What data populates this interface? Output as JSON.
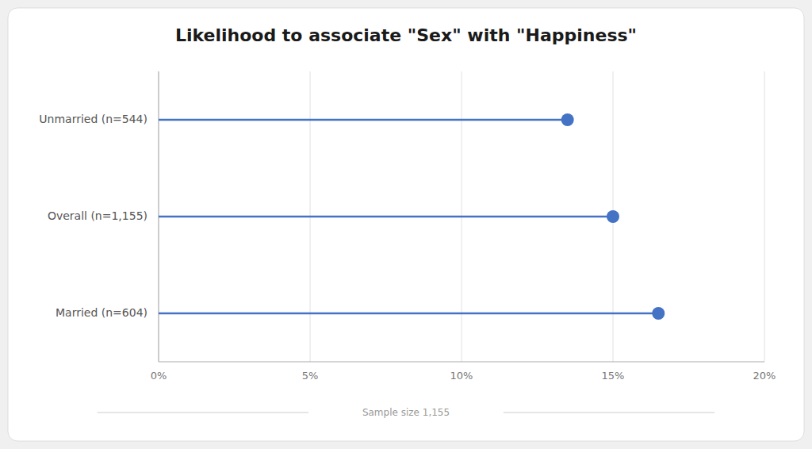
{
  "chart_data": {
    "type": "lollipop",
    "orientation": "horizontal",
    "title": "Likelihood to associate \"Sex\" with \"Happiness\"",
    "categories": [
      "Unmarried (n=544)",
      "Overall (n=1,155)",
      "Married (n=604)"
    ],
    "values": [
      13.5,
      15.0,
      16.5
    ],
    "color": "#4472C4",
    "xlim": [
      0,
      20
    ],
    "xticks": [
      {
        "value": 0,
        "label": "0%"
      },
      {
        "value": 5,
        "label": "5%"
      },
      {
        "value": 10,
        "label": "10%"
      },
      {
        "value": 15,
        "label": "15%"
      },
      {
        "value": 20,
        "label": "20%"
      }
    ],
    "grid": true,
    "annotations": [
      "Sample size 1,155"
    ]
  }
}
